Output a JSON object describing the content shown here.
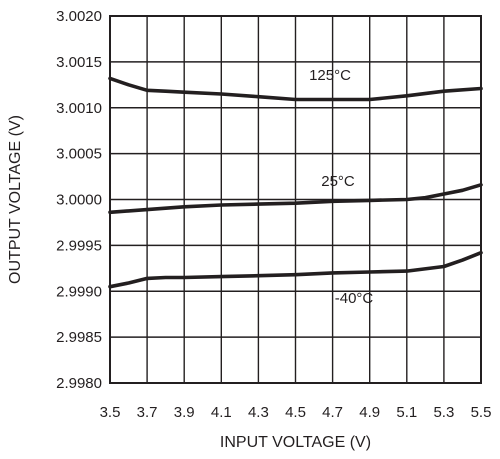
{
  "chart_data": {
    "type": "line",
    "xlabel": "INPUT VOLTAGE (V)",
    "ylabel": "OUTPUT VOLTAGE (V)",
    "xlim": [
      3.5,
      5.5
    ],
    "ylim": [
      2.998,
      3.002
    ],
    "xticks": [
      "3.5",
      "3.7",
      "3.9",
      "4.1",
      "4.3",
      "4.5",
      "4.7",
      "4.9",
      "5.1",
      "5.3",
      "5.5"
    ],
    "yticks": [
      "3.0020",
      "3.0015",
      "3.0010",
      "3.0005",
      "3.0000",
      "2.9995",
      "2.9990",
      "2.9985",
      "2.9980"
    ],
    "grid": true,
    "series": [
      {
        "name": "125°C",
        "x": [
          3.5,
          3.6,
          3.7,
          3.8,
          3.9,
          4.1,
          4.3,
          4.5,
          4.7,
          4.9,
          5.1,
          5.3,
          5.5
        ],
        "y": [
          3.00132,
          3.00125,
          3.00119,
          3.00118,
          3.00117,
          3.00115,
          3.00112,
          3.00109,
          3.00109,
          3.00109,
          3.00113,
          3.00118,
          3.00121
        ]
      },
      {
        "name": "25°C",
        "x": [
          3.5,
          3.7,
          3.9,
          4.1,
          4.3,
          4.5,
          4.7,
          4.9,
          5.1,
          5.2,
          5.3,
          5.4,
          5.5
        ],
        "y": [
          2.99986,
          2.99989,
          2.99992,
          2.99994,
          2.99995,
          2.99996,
          2.99998,
          2.99999,
          3.0,
          3.00002,
          3.00006,
          3.0001,
          3.00016
        ]
      },
      {
        "name": "-40°C",
        "x": [
          3.5,
          3.6,
          3.7,
          3.8,
          3.9,
          4.1,
          4.3,
          4.5,
          4.7,
          4.9,
          5.1,
          5.3,
          5.4,
          5.5
        ],
        "y": [
          2.99905,
          2.99909,
          2.99914,
          2.99915,
          2.99915,
          2.99916,
          2.99917,
          2.99918,
          2.9992,
          2.99921,
          2.99922,
          2.99927,
          2.99934,
          2.99942
        ]
      }
    ]
  }
}
